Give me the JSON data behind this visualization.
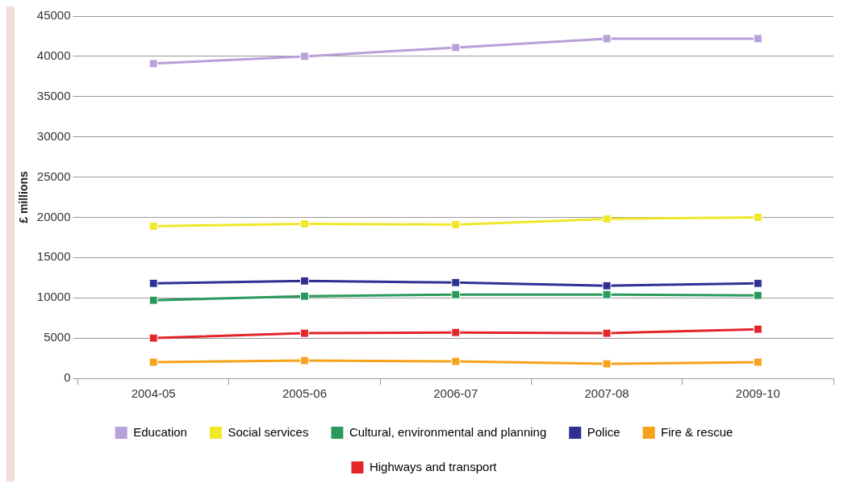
{
  "chart_data": {
    "type": "line",
    "ylabel": "£ millions",
    "categories": [
      "2004-05",
      "2005-06",
      "2006-07",
      "2007-08",
      "2009-10"
    ],
    "series": [
      {
        "name": "Education",
        "color": "#b8a0d8",
        "values": [
          39100,
          40000,
          41100,
          42200,
          42200
        ]
      },
      {
        "name": "Social services",
        "color": "#f0e829",
        "values": [
          18900,
          19200,
          19100,
          19800,
          20000
        ]
      },
      {
        "name": "Cultural, environmental and planning",
        "color": "#2a9a5c",
        "values": [
          9700,
          10200,
          10400,
          10400,
          10300
        ]
      },
      {
        "name": "Police",
        "color": "#2e3192",
        "values": [
          11800,
          12100,
          11900,
          11500,
          11800
        ]
      },
      {
        "name": "Fire & rescue",
        "color": "#f7a21b",
        "values": [
          2000,
          2200,
          2100,
          1800,
          2000
        ]
      },
      {
        "name": "Highways and transport",
        "color": "#e3262a",
        "values": [
          5000,
          5600,
          5700,
          5600,
          6100
        ]
      }
    ],
    "ylim": [
      0,
      45000
    ],
    "yticks": [
      0,
      5000,
      10000,
      15000,
      20000,
      25000,
      30000,
      35000,
      40000,
      45000
    ],
    "grid": "y",
    "legend": "bottom",
    "marker": "square",
    "line_style": "solid"
  }
}
